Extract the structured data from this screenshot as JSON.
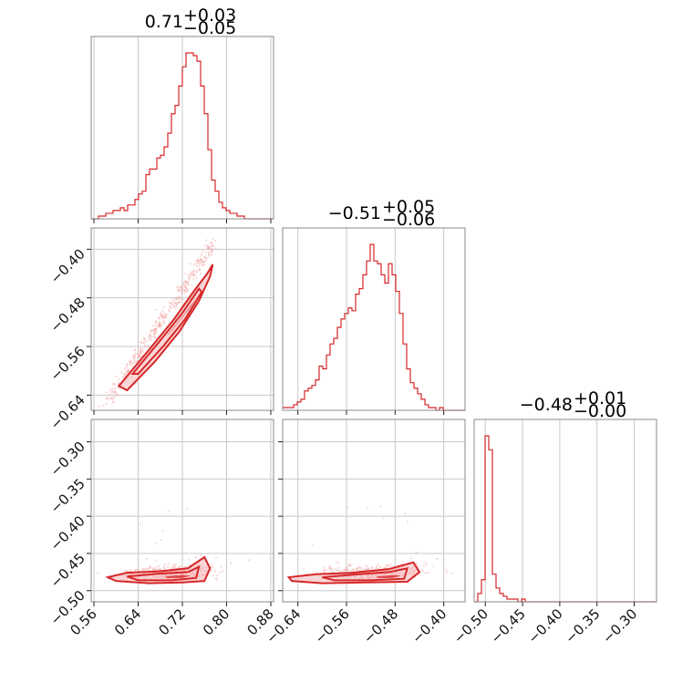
{
  "chart_data": {
    "type": "corner",
    "parameters": 3,
    "titles": [
      {
        "value": "0.71",
        "plus": "+0.03",
        "minus": "−0.05"
      },
      {
        "value": "−0.51",
        "plus": "+0.05",
        "minus": "−0.06"
      },
      {
        "value": "−0.48",
        "plus": "+0.01",
        "minus": "−0.00"
      }
    ],
    "axes": [
      {
        "range": [
          0.555,
          0.885
        ],
        "ticks": [
          0.56,
          0.64,
          0.72,
          0.8,
          0.88
        ],
        "tick_labels": [
          "0.56",
          "0.64",
          "0.72",
          "0.80",
          "0.88"
        ]
      },
      {
        "range": [
          -0.665,
          -0.365
        ],
        "ticks": [
          -0.64,
          -0.56,
          -0.48,
          -0.4
        ],
        "tick_labels": [
          "−0.64",
          "−0.56",
          "−0.48",
          "−0.40"
        ]
      },
      {
        "range": [
          -0.515,
          -0.27
        ],
        "ticks": [
          -0.5,
          -0.45,
          -0.4,
          -0.35,
          -0.3
        ],
        "tick_labels": [
          "−0.50",
          "−0.45",
          "−0.40",
          "−0.35",
          "−0.30"
        ]
      }
    ],
    "grid": true,
    "color": "#d62728",
    "histograms": [
      {
        "param": 0,
        "bin_start": 0.555,
        "bin_width": 0.0066,
        "counts": [
          0,
          0,
          1,
          1,
          2,
          2,
          3,
          3,
          4,
          3,
          5,
          5,
          7,
          9,
          10,
          16,
          18,
          18,
          22,
          23,
          26,
          31,
          38,
          41,
          48,
          55,
          60,
          60,
          59,
          57,
          48,
          38,
          25,
          14,
          10,
          6,
          4,
          3,
          2,
          2,
          1,
          1,
          0,
          0,
          0,
          0,
          0,
          0,
          0,
          0
        ]
      },
      {
        "param": 1,
        "bin_start": -0.665,
        "bin_width": 0.006,
        "counts": [
          1,
          1,
          1,
          2,
          3,
          4,
          7,
          8,
          9,
          11,
          16,
          15,
          20,
          24,
          26,
          30,
          33,
          35,
          37,
          36,
          42,
          44,
          49,
          54,
          60,
          54,
          53,
          49,
          46,
          53,
          49,
          43,
          35,
          24,
          15,
          10,
          8,
          6,
          4,
          2,
          1,
          1,
          0,
          1,
          0,
          0,
          0,
          0,
          0,
          0
        ]
      },
      {
        "param": 2,
        "bin_start": -0.515,
        "bin_width": 0.0049,
        "counts": [
          0,
          3,
          8,
          60,
          55,
          10,
          5,
          3,
          2,
          1,
          1,
          1,
          0,
          1,
          0,
          0,
          0,
          0,
          0,
          0,
          0,
          0,
          0,
          0,
          0,
          0,
          0,
          0,
          0,
          0,
          0,
          0,
          0,
          0,
          0,
          0,
          0,
          0,
          0,
          0,
          0,
          0,
          0,
          0,
          0,
          0,
          0,
          0,
          0,
          0
        ]
      }
    ]
  }
}
